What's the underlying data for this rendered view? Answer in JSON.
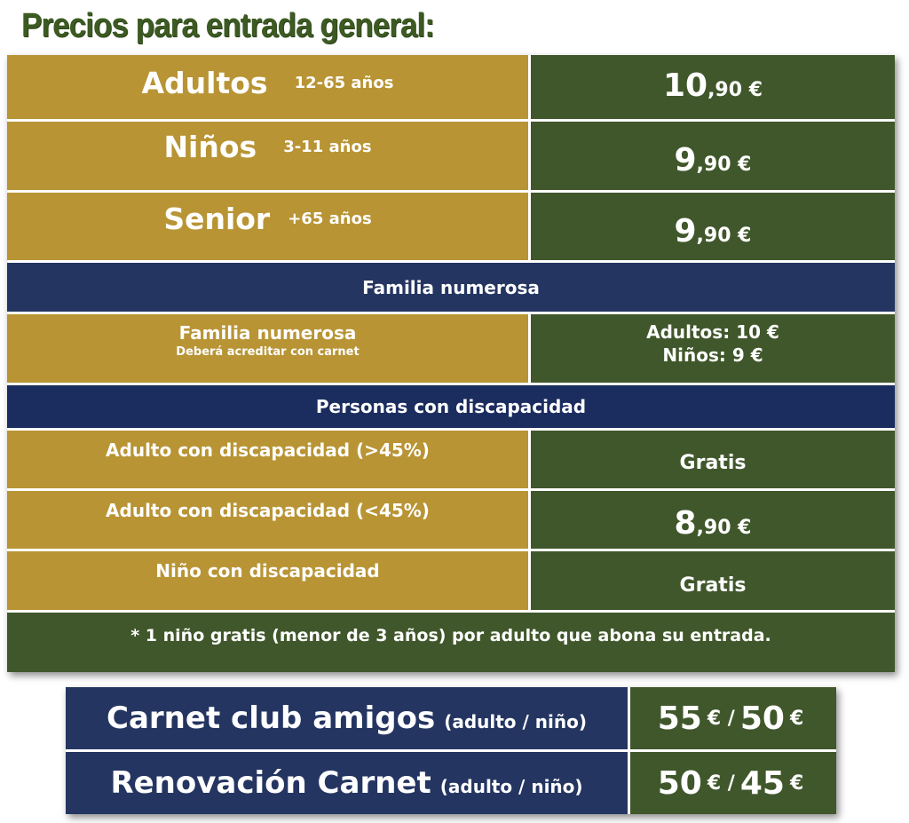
{
  "title": "Precios para entrada general:",
  "general": [
    {
      "label": "Adultos",
      "age": "12-65 años",
      "price_int": "10",
      "price_dec": ",90 €"
    },
    {
      "label": "Niños",
      "age": "3-11 años",
      "price_int": "9",
      "price_dec": ",90 €"
    },
    {
      "label": "Senior",
      "age": "+65 años",
      "price_int": "9",
      "price_dec": ",90 €"
    }
  ],
  "familia": {
    "header": "Familia numerosa",
    "label": "Familia numerosa",
    "note": "Deberá acreditar  con carnet",
    "adultos": "Adultos: 10 €",
    "ninos": "Niños: 9 €"
  },
  "discapacidad": {
    "header": "Personas con discapacidad",
    "rows": [
      {
        "label": "Adulto con discapacidad (>45%)",
        "price": "Gratis"
      },
      {
        "label": "Adulto con discapacidad (<45%)",
        "price_int": "8",
        "price_dec": ",90 €"
      },
      {
        "label": "Niño con discapacidad",
        "price": "Gratis"
      }
    ]
  },
  "footnote": "* 1 niño gratis (menor de 3 años) por adulto que abona su entrada.",
  "carnet": [
    {
      "label": "Carnet club amigos",
      "note": "(adulto / niño)",
      "a": "55",
      "a_eur": "€ /",
      "b": "50",
      "b_eur": "€"
    },
    {
      "label": "Renovación Carnet",
      "note": "(adulto / niño)",
      "a": "50",
      "a_eur": "€ /",
      "b": "45",
      "b_eur": "€"
    }
  ],
  "colors": {
    "gold": "#b89434",
    "green": "#40572b",
    "navy": "#243561",
    "title_green": "#3c5a22"
  }
}
